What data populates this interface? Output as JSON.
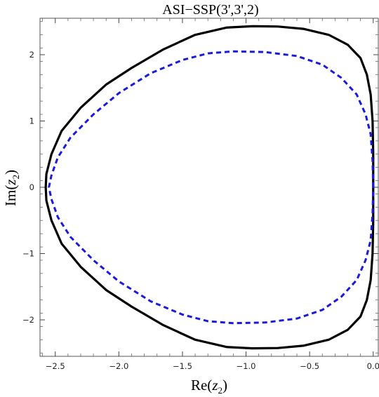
{
  "chart_data": {
    "type": "line",
    "title": "ASI−SSP(3',3',2)",
    "xlabel": {
      "prefix": "Re(",
      "var": "z",
      "sub": "2",
      "suffix": ")"
    },
    "ylabel": {
      "prefix": "Im(",
      "var": "z",
      "sub": "2",
      "suffix": ")"
    },
    "xlim": [
      -2.62,
      0.04
    ],
    "ylim": [
      -2.55,
      2.55
    ],
    "x_ticks": [
      -2.5,
      -2.0,
      -1.5,
      -1.0,
      -0.5,
      0.0
    ],
    "x_tick_labels": [
      "−2.5",
      "−2.0",
      "−1.5",
      "−1.0",
      "−0.5",
      "0.0"
    ],
    "y_ticks": [
      -2,
      -1,
      0,
      1,
      2
    ],
    "y_tick_labels": [
      "−2",
      "−1",
      "0",
      "1",
      "2"
    ],
    "grid": false,
    "series": [
      {
        "style": "solid",
        "color": "#000000",
        "x": [
          0.0,
          0.0,
          -0.005,
          -0.02,
          -0.05,
          -0.1,
          -0.2,
          -0.35,
          -0.55,
          -0.75,
          -0.95,
          -1.15,
          -1.4,
          -1.65,
          -1.9,
          -2.1,
          -2.3,
          -2.45,
          -2.53,
          -2.57,
          -2.575
        ],
        "y": [
          0.0,
          0.5,
          1.0,
          1.4,
          1.7,
          1.95,
          2.15,
          2.3,
          2.39,
          2.425,
          2.43,
          2.41,
          2.3,
          2.08,
          1.8,
          1.55,
          1.2,
          0.85,
          0.5,
          0.2,
          0.0
        ]
      },
      {
        "style": "dashed",
        "color": "#1a1adc",
        "x": [
          0.0,
          -0.005,
          -0.02,
          -0.06,
          -0.13,
          -0.25,
          -0.4,
          -0.6,
          -0.85,
          -1.1,
          -1.3,
          -1.5,
          -1.75,
          -2.0,
          -2.2,
          -2.38,
          -2.48,
          -2.53,
          -2.55
        ],
        "y": [
          0.0,
          0.4,
          0.8,
          1.1,
          1.4,
          1.65,
          1.85,
          1.98,
          2.04,
          2.05,
          2.02,
          1.92,
          1.72,
          1.42,
          1.1,
          0.75,
          0.45,
          0.18,
          0.0
        ]
      }
    ]
  }
}
